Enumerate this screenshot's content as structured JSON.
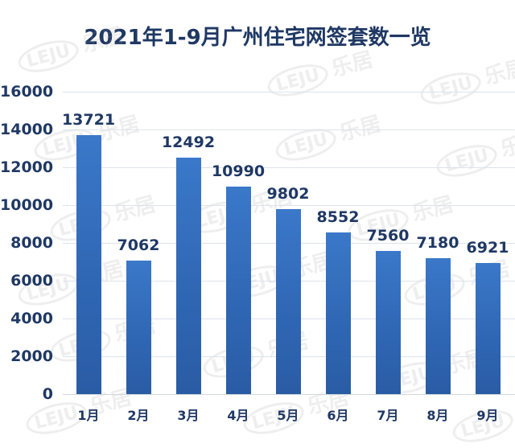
{
  "title": "2021年1-9月广州住宅网签套数一览",
  "watermark": {
    "logo": "LEJU",
    "text": "乐居"
  },
  "colors": {
    "bar": "#3670c0",
    "text": "#1f3864",
    "grid": "#dde3ea"
  },
  "yticks": [
    "16000",
    "14000",
    "12000",
    "10000",
    "8000",
    "6000",
    "4000",
    "2000",
    "0"
  ],
  "chart_data": {
    "type": "bar",
    "title": "2021年1-9月广州住宅网签套数一览",
    "xlabel": "",
    "ylabel": "",
    "categories": [
      "1月",
      "2月",
      "3月",
      "4月",
      "5月",
      "6月",
      "7月",
      "8月",
      "9月"
    ],
    "values": [
      13721,
      7062,
      12492,
      10990,
      9802,
      8552,
      7560,
      7180,
      6921
    ],
    "ylim": [
      0,
      16000
    ],
    "yticks": [
      0,
      2000,
      4000,
      6000,
      8000,
      10000,
      12000,
      14000,
      16000
    ],
    "grid": true,
    "legend": null,
    "data_labels": true
  }
}
